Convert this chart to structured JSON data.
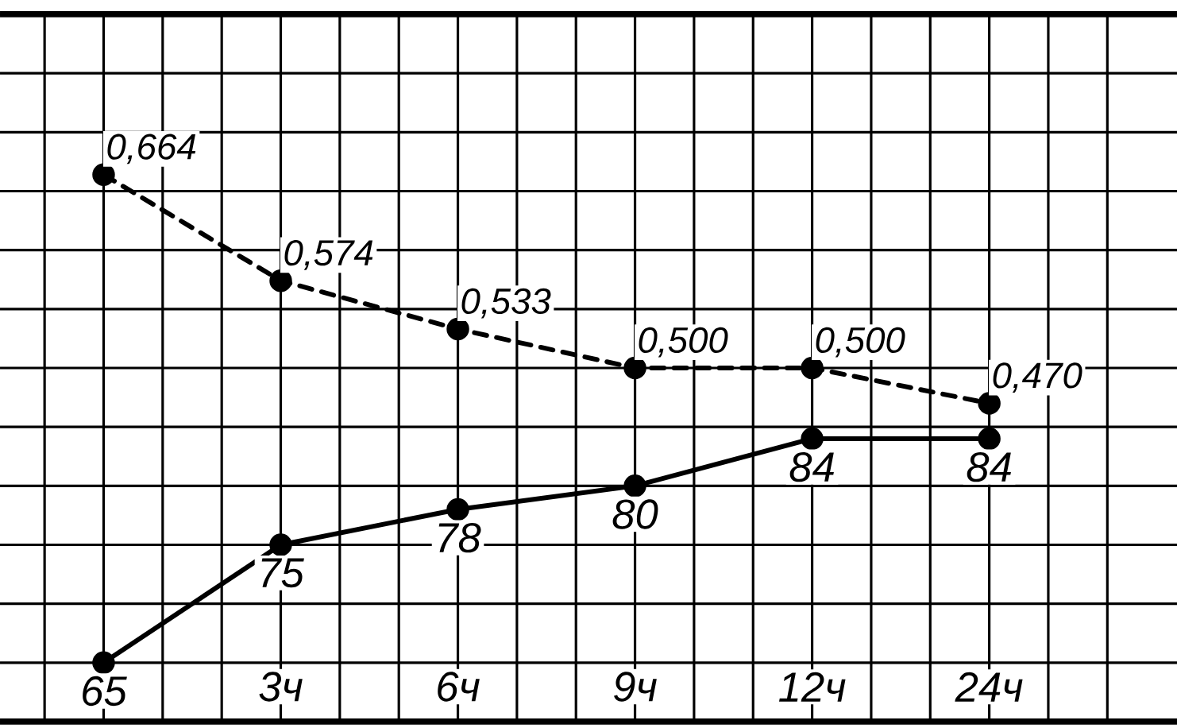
{
  "chart_data": {
    "type": "line",
    "categories": [
      null,
      "3ч",
      "6ч",
      "9ч",
      "12ч",
      "24ч"
    ],
    "series": [
      {
        "color": "#000000",
        "line_style": "solid",
        "values": [
          65,
          75,
          78,
          80,
          84,
          84
        ],
        "value_labels": [
          "65",
          "75",
          "78",
          "80",
          "84",
          "84"
        ]
      },
      {
        "color": "#000000",
        "line_style": "dashed",
        "axis": "y2",
        "values": [
          0.664,
          0.574,
          0.533,
          0.5,
          0.5,
          0.47
        ],
        "value_labels": [
          "0,664",
          "0,574",
          "0,533",
          "0,500",
          "0,500",
          "0,470"
        ]
      }
    ],
    "ylim": [
      60,
      120
    ],
    "y2lim": [
      0.2,
      0.8
    ],
    "grid": true,
    "marker": "circle",
    "tick_labels": "x"
  }
}
